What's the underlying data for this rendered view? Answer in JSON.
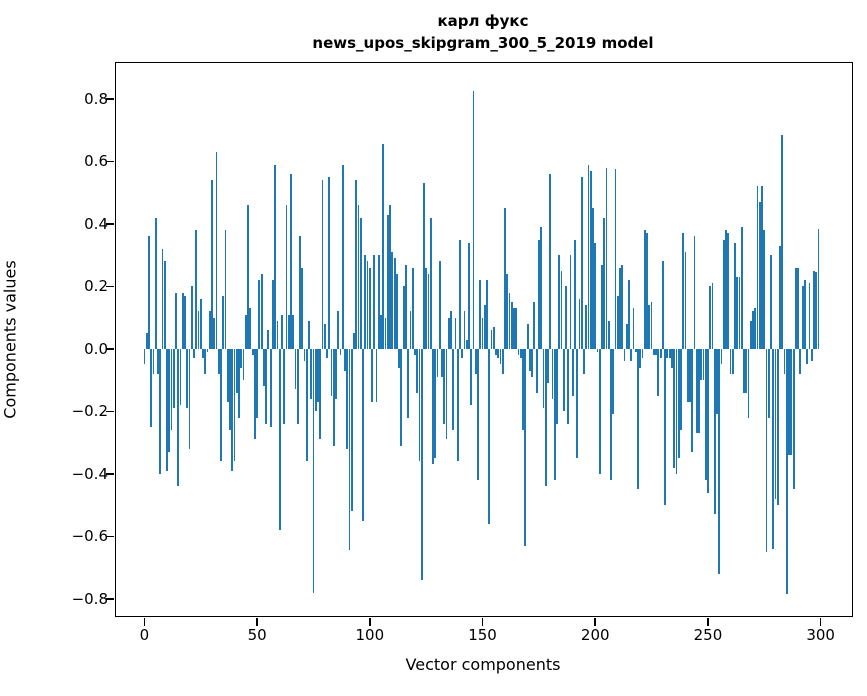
{
  "title": {
    "line1": "карл фукс",
    "line2": "news_upos_skipgram_300_5_2019 model"
  },
  "axes": {
    "xlabel": "Vector components",
    "ylabel": "Components values"
  },
  "chart_data": {
    "type": "bar",
    "title": "карл фукс — news_upos_skipgram_300_5_2019 model",
    "xlabel": "Vector components",
    "ylabel": "Components values",
    "bar_color": "#1f77b4",
    "background_color": "#ffffff",
    "grid": false,
    "legend": null,
    "xlim": [
      -12.6,
      313.9
    ],
    "ylim": [
      -0.855,
      0.915
    ],
    "x_ticks": [
      0,
      50,
      100,
      150,
      200,
      250,
      300
    ],
    "y_ticks": [
      0.8,
      0.6,
      0.4,
      0.2,
      0.0,
      -0.2,
      -0.4,
      -0.6,
      -0.8
    ],
    "y_tick_labels": [
      "0.8",
      "0.6",
      "0.4",
      "0.2",
      "0.0",
      "−0.2",
      "−0.4",
      "−0.6",
      "−0.8"
    ],
    "x_tick_labels": [
      "0",
      "50",
      "100",
      "150",
      "200",
      "250",
      "300"
    ],
    "n_components": 300,
    "values": [
      -0.05,
      0.05,
      0.36,
      -0.25,
      -0.08,
      0.42,
      -0.08,
      -0.4,
      0.32,
      0.28,
      -0.39,
      -0.33,
      -0.26,
      -0.19,
      0.18,
      -0.44,
      -0.18,
      0.18,
      0.17,
      -0.19,
      -0.32,
      0.2,
      -0.03,
      0.38,
      0.12,
      0.16,
      -0.03,
      -0.08,
      -0.01,
      0.12,
      0.54,
      0.1,
      0.63,
      -0.08,
      -0.36,
      0.17,
      0.38,
      -0.17,
      -0.26,
      -0.39,
      -0.36,
      -0.14,
      -0.22,
      -0.06,
      -0.1,
      0.11,
      0.46,
      0.13,
      -0.02,
      -0.29,
      -0.22,
      0.22,
      0.24,
      -0.12,
      -0.24,
      0.06,
      -0.25,
      0.22,
      0.59,
      0.09,
      -0.58,
      0.11,
      -0.24,
      0.46,
      0.11,
      0.56,
      0.11,
      -0.13,
      -0.24,
      0.36,
      0.26,
      -0.04,
      -0.36,
      0.09,
      -0.16,
      -0.78,
      -0.2,
      -0.17,
      -0.29,
      0.54,
      0.08,
      -0.03,
      0.55,
      -0.15,
      -0.31,
      -0.16,
      0.12,
      -0.02,
      0.59,
      -0.07,
      -0.32,
      -0.645,
      -0.52,
      0.05,
      0.54,
      0.46,
      0.42,
      -0.55,
      0.3,
      0.28,
      0.26,
      -0.17,
      0.3,
      -0.17,
      0.3,
      0.11,
      0.655,
      0.1,
      0.43,
      0.46,
      0.31,
      0.29,
      0.24,
      -0.06,
      -0.31,
      0.2,
      0.27,
      -0.22,
      0.12,
      0.26,
      -0.02,
      -0.14,
      -0.36,
      -0.74,
      0.53,
      0.26,
      0.24,
      0.42,
      -0.37,
      -0.35,
      -0.09,
      0.28,
      -0.09,
      -0.24,
      -0.29,
      0.1,
      0.12,
      -0.26,
      0.1,
      -0.36,
      0.35,
      -0.03,
      0.12,
      0.03,
      0.34,
      -0.18,
      0.825,
      -0.08,
      -0.42,
      0.22,
      0.1,
      0.14,
      0.22,
      -0.56,
      0.06,
      0.07,
      -0.02,
      -0.03,
      -0.05,
      -0.08,
      0.45,
      0.24,
      0.18,
      0.15,
      0.13,
      0.13,
      -0.02,
      -0.03,
      -0.26,
      -0.63,
      0.08,
      -0.07,
      -0.09,
      0.15,
      -0.14,
      0.35,
      0.39,
      -0.19,
      -0.44,
      -0.11,
      0.56,
      -0.16,
      -0.42,
      -0.24,
      0.3,
      0.25,
      -0.2,
      0.2,
      -0.24,
      0.3,
      -0.15,
      0.35,
      -0.35,
      0.16,
      0.55,
      -0.08,
      0.14,
      0.59,
      0.57,
      0.45,
      0.34,
      -0.01,
      -0.4,
      0.27,
      0.42,
      0.58,
      0.09,
      -0.42,
      -0.21,
      0.575,
      0.17,
      0.26,
      0.27,
      -0.04,
      0.08,
      0.22,
      -0.04,
      0.13,
      -0.01,
      -0.45,
      -0.06,
      -0.03,
      0.38,
      0.37,
      0.14,
      0.15,
      -0.02,
      -0.02,
      -0.15,
      -0.03,
      0.28,
      -0.5,
      -0.03,
      -0.03,
      -0.06,
      -0.38,
      -0.4,
      -0.35,
      -0.26,
      0.37,
      0.31,
      -0.17,
      -0.17,
      -0.33,
      0.36,
      -0.27,
      -0.27,
      -0.1,
      -0.1,
      -0.42,
      -0.46,
      0.2,
      0.21,
      -0.53,
      -0.21,
      -0.72,
      -0.05,
      0.35,
      0.38,
      0.37,
      -0.08,
      -0.08,
      0.34,
      0.23,
      0.23,
      0.39,
      -0.14,
      -0.14,
      -0.22,
      0.09,
      0.12,
      0.13,
      0.52,
      0.47,
      0.52,
      0.38,
      -0.65,
      -0.22,
      0.3,
      -0.64,
      -0.48,
      -0.5,
      0.33,
      0.685,
      -0.08,
      -0.785,
      -0.34,
      -0.34,
      -0.45,
      0.26,
      0.26,
      -0.08,
      0.2,
      0.22,
      -0.05,
      0.21,
      -0.04,
      0.25,
      0.245,
      0.385
    ]
  }
}
